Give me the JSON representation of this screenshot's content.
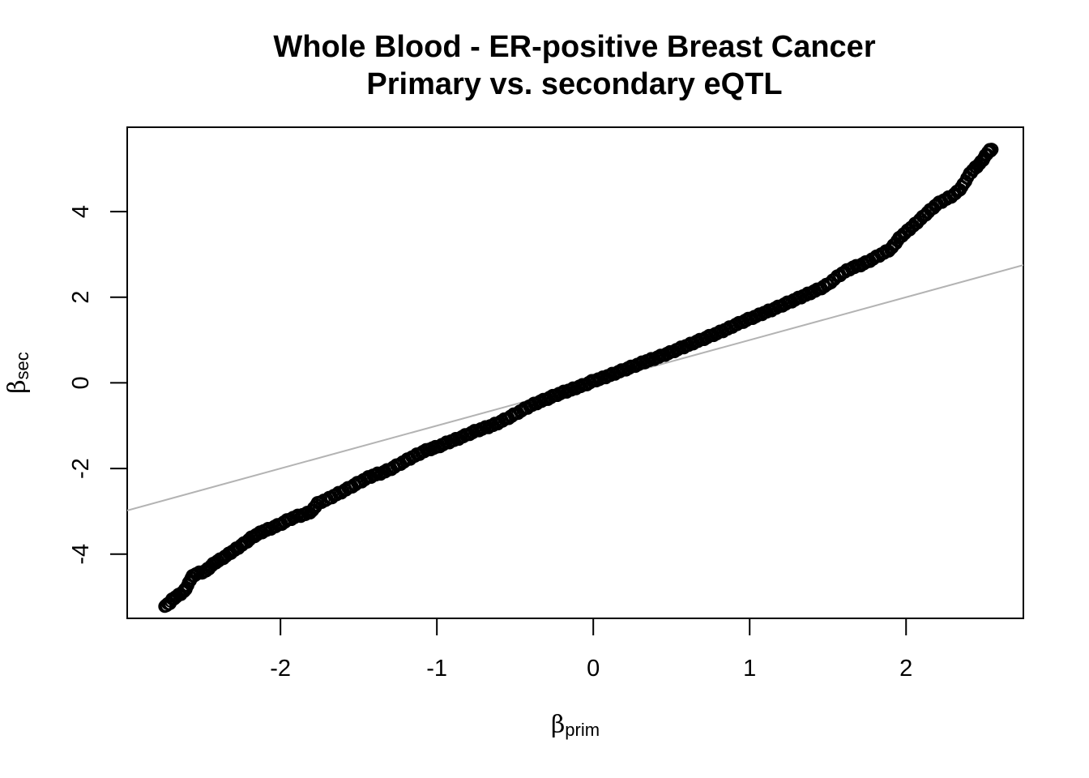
{
  "chart_data": {
    "type": "scatter",
    "title": "Whole Blood - ER-positive Breast Cancer",
    "subtitle": "Primary vs. secondary eQTL",
    "xlabel_symbol": "β",
    "xlabel_subscript": "prim",
    "ylabel_symbol": "β",
    "ylabel_subscript": "sec",
    "xlim": [
      -2.98,
      2.75
    ],
    "ylim": [
      -5.5,
      5.97
    ],
    "x_ticks": [
      -2,
      -1,
      0,
      1,
      2
    ],
    "y_ticks": [
      -4,
      -2,
      0,
      2,
      4
    ],
    "x_tick_labels": [
      "-2",
      "-1",
      "0",
      "1",
      "2"
    ],
    "y_tick_labels": [
      "-4",
      "-2",
      "0",
      "2",
      "4"
    ],
    "reference_line": {
      "intercept": 0,
      "slope": 1,
      "color": "#b3b3b3"
    },
    "point_style": {
      "marker": "open-circle",
      "color": "#000000"
    },
    "series": [
      {
        "points": [
          [
            -2.74,
            -5.22
          ],
          [
            -2.71,
            -5.15
          ],
          [
            -2.69,
            -5.05
          ],
          [
            -2.66,
            -4.98
          ],
          [
            -2.62,
            -4.88
          ],
          [
            -2.6,
            -4.78
          ],
          [
            -2.58,
            -4.62
          ],
          [
            -2.56,
            -4.5
          ],
          [
            -2.53,
            -4.45
          ],
          [
            -2.48,
            -4.4
          ],
          [
            -2.45,
            -4.3
          ],
          [
            -2.42,
            -4.2
          ],
          [
            -2.38,
            -4.12
          ],
          [
            -2.34,
            -4.02
          ],
          [
            -2.3,
            -3.92
          ],
          [
            -2.26,
            -3.82
          ],
          [
            -2.22,
            -3.72
          ],
          [
            -2.18,
            -3.6
          ],
          [
            -2.14,
            -3.52
          ],
          [
            -2.1,
            -3.45
          ],
          [
            -2.05,
            -3.38
          ],
          [
            -2.0,
            -3.3
          ],
          [
            -1.95,
            -3.2
          ],
          [
            -1.9,
            -3.12
          ],
          [
            -1.85,
            -3.08
          ],
          [
            -1.8,
            -3.0
          ],
          [
            -1.78,
            -2.9
          ],
          [
            -1.76,
            -2.8
          ],
          [
            -1.7,
            -2.72
          ],
          [
            -1.65,
            -2.62
          ],
          [
            -1.6,
            -2.53
          ],
          [
            -1.55,
            -2.43
          ],
          [
            -1.5,
            -2.33
          ],
          [
            -1.45,
            -2.23
          ],
          [
            -1.4,
            -2.15
          ],
          [
            -1.35,
            -2.1
          ],
          [
            -1.3,
            -2.02
          ],
          [
            -1.25,
            -1.92
          ],
          [
            -1.2,
            -1.82
          ],
          [
            -1.15,
            -1.72
          ],
          [
            -1.1,
            -1.63
          ],
          [
            -1.05,
            -1.55
          ],
          [
            -1.0,
            -1.5
          ],
          [
            -0.95,
            -1.42
          ],
          [
            -0.9,
            -1.35
          ],
          [
            -0.85,
            -1.28
          ],
          [
            -0.8,
            -1.2
          ],
          [
            -0.75,
            -1.12
          ],
          [
            -0.7,
            -1.06
          ],
          [
            -0.65,
            -1.0
          ],
          [
            -0.6,
            -0.92
          ],
          [
            -0.55,
            -0.83
          ],
          [
            -0.5,
            -0.73
          ],
          [
            -0.45,
            -0.63
          ],
          [
            -0.4,
            -0.53
          ],
          [
            -0.35,
            -0.45
          ],
          [
            -0.3,
            -0.38
          ],
          [
            -0.25,
            -0.3
          ],
          [
            -0.2,
            -0.23
          ],
          [
            -0.15,
            -0.17
          ],
          [
            -0.1,
            -0.1
          ],
          [
            -0.05,
            -0.04
          ],
          [
            0.0,
            0.05
          ],
          [
            0.05,
            0.1
          ],
          [
            0.1,
            0.17
          ],
          [
            0.15,
            0.24
          ],
          [
            0.2,
            0.31
          ],
          [
            0.25,
            0.38
          ],
          [
            0.3,
            0.45
          ],
          [
            0.35,
            0.52
          ],
          [
            0.4,
            0.58
          ],
          [
            0.45,
            0.65
          ],
          [
            0.5,
            0.72
          ],
          [
            0.55,
            0.8
          ],
          [
            0.6,
            0.87
          ],
          [
            0.65,
            0.95
          ],
          [
            0.7,
            1.02
          ],
          [
            0.75,
            1.1
          ],
          [
            0.8,
            1.17
          ],
          [
            0.85,
            1.25
          ],
          [
            0.9,
            1.34
          ],
          [
            0.95,
            1.42
          ],
          [
            1.0,
            1.5
          ],
          [
            1.05,
            1.57
          ],
          [
            1.1,
            1.65
          ],
          [
            1.15,
            1.72
          ],
          [
            1.2,
            1.8
          ],
          [
            1.25,
            1.88
          ],
          [
            1.3,
            1.96
          ],
          [
            1.35,
            2.04
          ],
          [
            1.4,
            2.12
          ],
          [
            1.45,
            2.2
          ],
          [
            1.5,
            2.3
          ],
          [
            1.55,
            2.45
          ],
          [
            1.6,
            2.58
          ],
          [
            1.65,
            2.68
          ],
          [
            1.7,
            2.74
          ],
          [
            1.75,
            2.82
          ],
          [
            1.8,
            2.92
          ],
          [
            1.85,
            3.02
          ],
          [
            1.9,
            3.12
          ],
          [
            1.93,
            3.25
          ],
          [
            1.96,
            3.4
          ],
          [
            2.0,
            3.52
          ],
          [
            2.04,
            3.65
          ],
          [
            2.08,
            3.78
          ],
          [
            2.12,
            3.92
          ],
          [
            2.16,
            4.05
          ],
          [
            2.2,
            4.18
          ],
          [
            2.25,
            4.28
          ],
          [
            2.3,
            4.38
          ],
          [
            2.34,
            4.5
          ],
          [
            2.37,
            4.65
          ],
          [
            2.4,
            4.85
          ],
          [
            2.43,
            4.98
          ],
          [
            2.46,
            5.08
          ],
          [
            2.49,
            5.2
          ],
          [
            2.51,
            5.32
          ],
          [
            2.53,
            5.42
          ],
          [
            2.55,
            5.45
          ]
        ]
      }
    ]
  }
}
